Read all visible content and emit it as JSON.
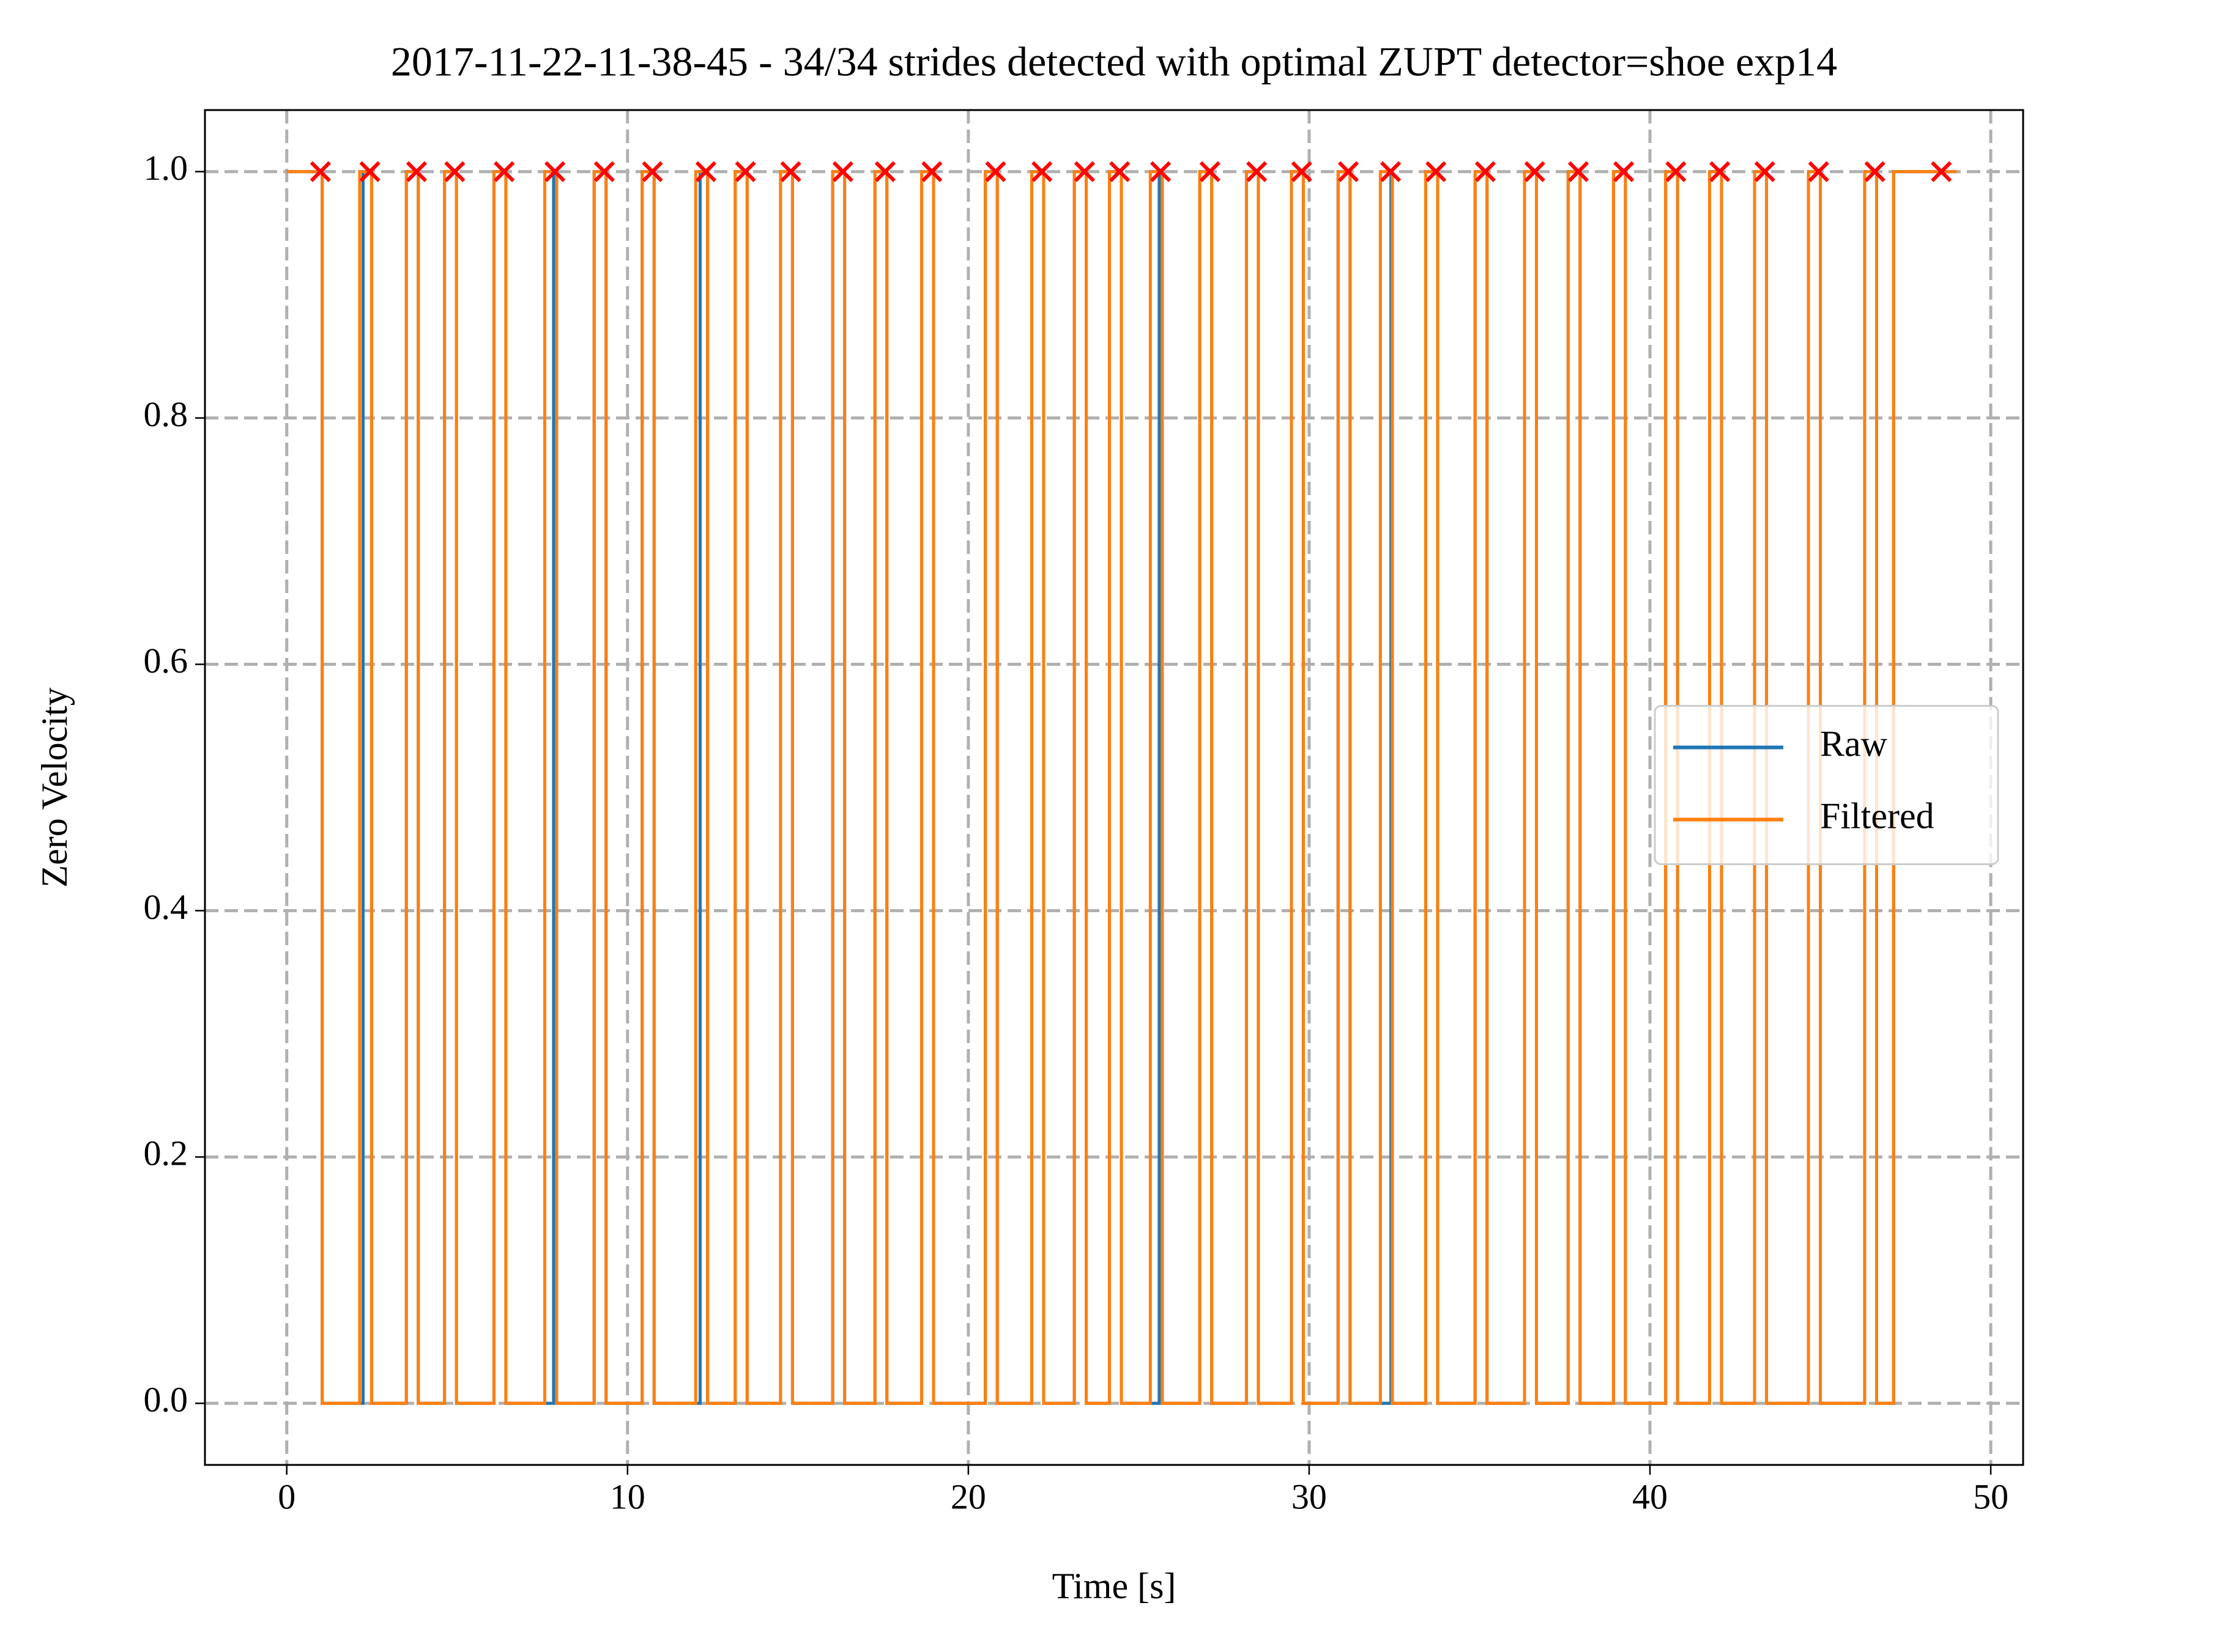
{
  "chart_data": {
    "type": "step",
    "title": "2017-11-22-11-38-45 - 34/34 strides detected with optimal ZUPT detector=shoe exp14",
    "xlabel": "Time [s]",
    "ylabel": "Zero Velocity",
    "xlim": [
      -2.4,
      50.95
    ],
    "ylim": [
      -0.05,
      1.05
    ],
    "xticks": [
      0,
      10,
      20,
      30,
      40,
      50
    ],
    "yticks": [
      {
        "value": 0,
        "label": "0.0"
      },
      {
        "value": 0.2,
        "label": "0.2"
      },
      {
        "value": 0.4,
        "label": "0.4"
      },
      {
        "value": 0.6,
        "label": "0.6"
      },
      {
        "value": 0.8,
        "label": "0.8"
      },
      {
        "value": 1,
        "label": "1.0"
      }
    ],
    "grid": true,
    "legend": "center right",
    "series": [
      {
        "name": "Raw",
        "color": "#1f77b4",
        "x": [
          0,
          1.04,
          2.24,
          2.49,
          3.51,
          3.86,
          4.63,
          4.98,
          6.08,
          6.43,
          7.83,
          7.92,
          9.02,
          9.37,
          10.43,
          10.78,
          12.13,
          12.35,
          13.16,
          13.51,
          14.49,
          14.84,
          16.02,
          16.37,
          17.26,
          17.61,
          18.63,
          18.98,
          20.5,
          20.85,
          21.86,
          22.21,
          23.11,
          23.46,
          24.14,
          24.49,
          25.6,
          25.69,
          26.79,
          27.14,
          28.16,
          28.51,
          29.48,
          29.83,
          30.85,
          31.2,
          32.4,
          32.44,
          33.42,
          33.77,
          34.87,
          35.22,
          36.32,
          36.67,
          37.6,
          37.95,
          38.93,
          39.28,
          40.46,
          40.81,
          41.75,
          42.1,
          43.07,
          43.42,
          44.65,
          45.0,
          46.3,
          46.65,
          47.15,
          49.0
        ],
        "values": [
          1,
          0,
          1,
          0,
          1,
          0,
          1,
          0,
          1,
          0,
          1,
          0,
          1,
          0,
          1,
          0,
          1,
          0,
          1,
          0,
          1,
          0,
          1,
          0,
          1,
          0,
          1,
          0,
          1,
          0,
          1,
          0,
          1,
          0,
          1,
          0,
          1,
          0,
          1,
          0,
          1,
          0,
          1,
          0,
          1,
          0,
          1,
          0,
          1,
          0,
          1,
          0,
          1,
          0,
          1,
          0,
          1,
          0,
          1,
          0,
          1,
          0,
          1,
          0,
          1,
          0,
          1,
          0,
          1,
          1
        ]
      },
      {
        "name": "Filtered",
        "color": "#ff7f0e",
        "x": [
          0,
          1.04,
          2.14,
          2.49,
          3.51,
          3.86,
          4.63,
          4.98,
          6.08,
          6.43,
          7.57,
          7.92,
          9.02,
          9.37,
          10.43,
          10.78,
          12.0,
          12.35,
          13.16,
          13.51,
          14.49,
          14.84,
          16.02,
          16.37,
          17.26,
          17.61,
          18.63,
          18.98,
          20.5,
          20.85,
          21.86,
          22.21,
          23.11,
          23.46,
          24.14,
          24.49,
          25.34,
          25.69,
          26.79,
          27.14,
          28.16,
          28.51,
          29.48,
          29.83,
          30.85,
          31.2,
          32.09,
          32.44,
          33.42,
          33.77,
          34.87,
          35.22,
          36.32,
          36.67,
          37.6,
          37.95,
          38.93,
          39.28,
          40.46,
          40.81,
          41.75,
          42.1,
          43.07,
          43.42,
          44.65,
          45.0,
          46.3,
          46.65,
          47.15,
          49.0
        ],
        "values": [
          1,
          0,
          1,
          0,
          1,
          0,
          1,
          0,
          1,
          0,
          1,
          0,
          1,
          0,
          1,
          0,
          1,
          0,
          1,
          0,
          1,
          0,
          1,
          0,
          1,
          0,
          1,
          0,
          1,
          0,
          1,
          0,
          1,
          0,
          1,
          0,
          1,
          0,
          1,
          0,
          1,
          0,
          1,
          0,
          1,
          0,
          1,
          0,
          1,
          0,
          1,
          0,
          1,
          0,
          1,
          0,
          1,
          0,
          1,
          0,
          1,
          0,
          1,
          0,
          1,
          0,
          1,
          0,
          1,
          1
        ]
      }
    ],
    "markers": {
      "color": "#ff0000",
      "x": [
        0.99,
        2.44,
        3.81,
        4.93,
        6.38,
        7.87,
        9.32,
        10.73,
        12.3,
        13.46,
        14.79,
        16.32,
        17.56,
        18.93,
        20.8,
        22.16,
        23.41,
        24.44,
        25.64,
        27.09,
        28.46,
        29.78,
        31.15,
        32.39,
        33.72,
        35.17,
        36.62,
        37.9,
        39.23,
        40.76,
        42.05,
        43.37,
        44.95,
        46.6,
        48.55
      ],
      "values": [
        1,
        1,
        1,
        1,
        1,
        1,
        1,
        1,
        1,
        1,
        1,
        1,
        1,
        1,
        1,
        1,
        1,
        1,
        1,
        1,
        1,
        1,
        1,
        1,
        1,
        1,
        1,
        1,
        1,
        1,
        1,
        1,
        1,
        1,
        1
      ]
    }
  }
}
